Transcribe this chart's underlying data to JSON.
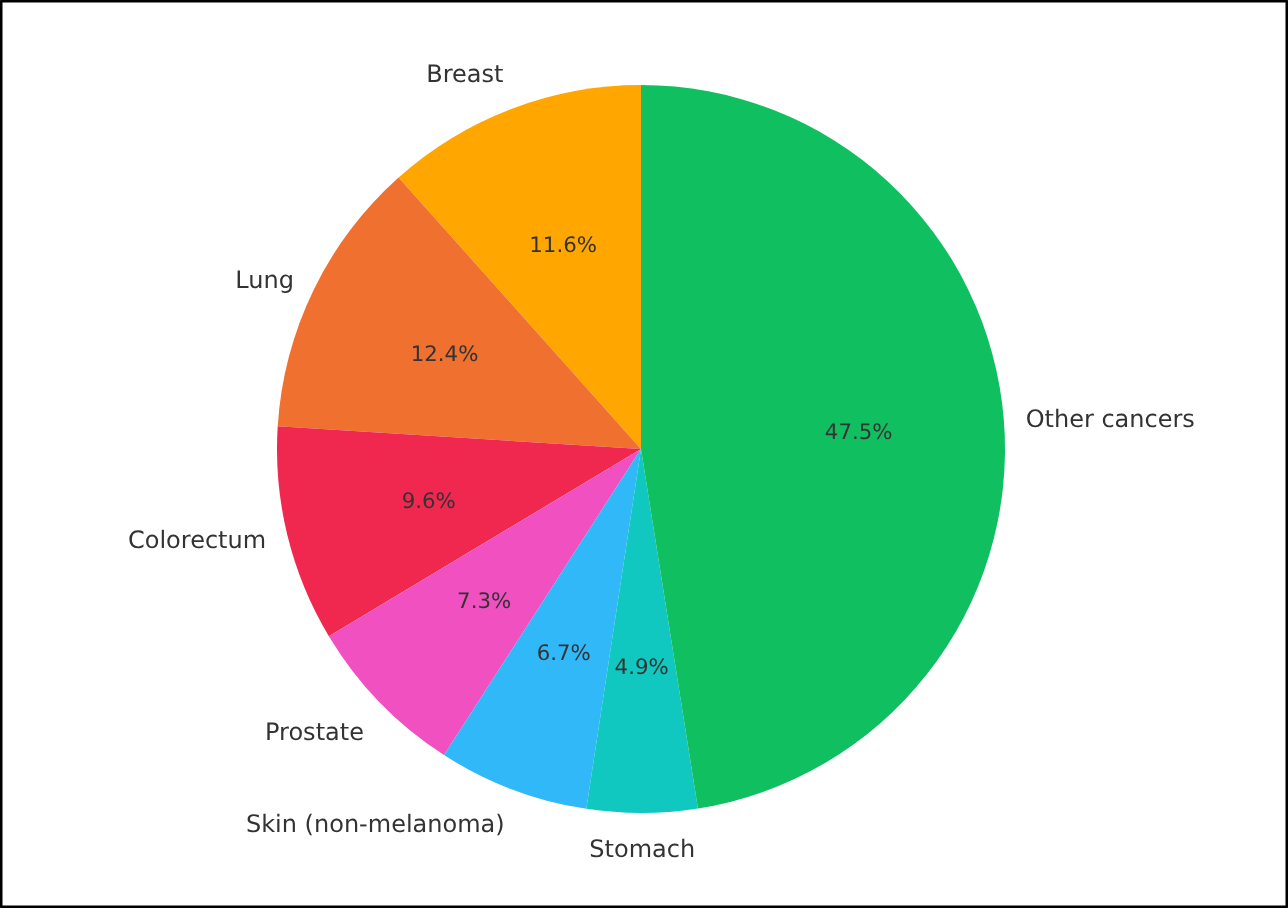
{
  "chart_data": {
    "type": "pie",
    "categories": [
      "Breast",
      "Lung",
      "Colorectum",
      "Prostate",
      "Skin (non-melanoma)",
      "Stomach",
      "Other cancers"
    ],
    "values": [
      11.6,
      12.4,
      9.6,
      7.3,
      6.7,
      4.9,
      47.5
    ],
    "value_labels": [
      "11.6%",
      "12.4%",
      "9.6%",
      "7.3%",
      "6.7%",
      "4.9%",
      "47.5%"
    ],
    "colors": [
      "#ffa600",
      "#f07030",
      "#f02850",
      "#f050c0",
      "#30b8f8",
      "#10c8c0",
      "#10c060"
    ]
  }
}
